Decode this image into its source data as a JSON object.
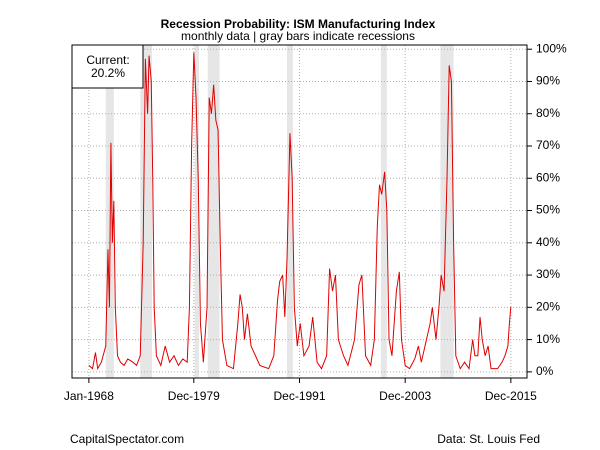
{
  "chart_data": {
    "type": "line",
    "title": "Recession Probability: ISM Manufacturing Index",
    "subtitle": "monthly data | gray bars indicate recessions",
    "legend_title": "Current:",
    "legend_value": "20.2%",
    "footer_left": "CapitalSpectator.com",
    "footer_right": "Data: St. Louis Fed",
    "recessions": [
      {
        "start": "1969-12",
        "end": "1970-11"
      },
      {
        "start": "1973-11",
        "end": "1975-03"
      },
      {
        "start": "1980-01",
        "end": "1980-07"
      },
      {
        "start": "1981-07",
        "end": "1982-11"
      },
      {
        "start": "1990-07",
        "end": "1991-03"
      },
      {
        "start": "2001-03",
        "end": "2001-11"
      },
      {
        "start": "2007-12",
        "end": "2009-06"
      }
    ],
    "recession_color": "#e6e6e6",
    "grid": true,
    "xlim": [
      "1966-02",
      "2017-10"
    ],
    "xticks": [
      {
        "value": "1968-01",
        "label": "Jan-1968"
      },
      {
        "value": "1979-12",
        "label": "Dec-1979"
      },
      {
        "value": "1991-12",
        "label": "Dec-1991"
      },
      {
        "value": "2003-12",
        "label": "Dec-2003"
      },
      {
        "value": "2015-12",
        "label": "Dec-2015"
      }
    ],
    "ylim": [
      -1.9,
      101.3
    ],
    "yticks": [
      {
        "value": 0,
        "label": "0%"
      },
      {
        "value": 10,
        "label": "10%"
      },
      {
        "value": 20,
        "label": "20%"
      },
      {
        "value": 30,
        "label": "30%"
      },
      {
        "value": 40,
        "label": "40%"
      },
      {
        "value": 50,
        "label": "50%"
      },
      {
        "value": 60,
        "label": "60%"
      },
      {
        "value": 70,
        "label": "70%"
      },
      {
        "value": 80,
        "label": "80%"
      },
      {
        "value": 90,
        "label": "90%"
      },
      {
        "value": 100,
        "label": "100%"
      }
    ],
    "x": [
      "1968-01",
      "1968-06",
      "1968-10",
      "1969-01",
      "1969-06",
      "1969-12",
      "1970-03",
      "1970-05",
      "1970-07",
      "1970-09",
      "1970-11",
      "1971-01",
      "1971-04",
      "1971-08",
      "1972-01",
      "1972-06",
      "1973-01",
      "1973-06",
      "1973-11",
      "1974-03",
      "1974-06",
      "1974-09",
      "1974-11",
      "1975-02",
      "1975-04",
      "1975-06",
      "1975-09",
      "1976-03",
      "1976-09",
      "1977-03",
      "1977-09",
      "1978-03",
      "1978-09",
      "1979-03",
      "1979-06",
      "1979-09",
      "1979-12",
      "1980-03",
      "1980-06",
      "1980-09",
      "1981-01",
      "1981-06",
      "1981-09",
      "1981-12",
      "1982-03",
      "1982-06",
      "1982-09",
      "1982-12",
      "1983-03",
      "1983-09",
      "1984-06",
      "1984-12",
      "1985-03",
      "1985-06",
      "1985-09",
      "1986-01",
      "1986-06",
      "1986-12",
      "1987-06",
      "1988-06",
      "1989-01",
      "1989-06",
      "1989-09",
      "1990-01",
      "1990-04",
      "1990-07",
      "1990-11",
      "1991-02",
      "1991-05",
      "1991-09",
      "1992-01",
      "1992-06",
      "1993-01",
      "1993-06",
      "1993-12",
      "1994-06",
      "1995-01",
      "1995-05",
      "1995-09",
      "1996-01",
      "1996-05",
      "1996-12",
      "1997-06",
      "1998-03",
      "1998-09",
      "1999-01",
      "1999-06",
      "2000-01",
      "2000-06",
      "2000-10",
      "2001-01",
      "2001-04",
      "2001-08",
      "2001-11",
      "2002-02",
      "2002-06",
      "2002-12",
      "2003-04",
      "2003-07",
      "2003-12",
      "2004-06",
      "2005-01",
      "2005-06",
      "2005-10",
      "2006-05",
      "2006-10",
      "2007-01",
      "2007-06",
      "2007-10",
      "2008-01",
      "2008-05",
      "2008-09",
      "2008-12",
      "2009-03",
      "2009-06",
      "2009-09",
      "2010-03",
      "2010-09",
      "2011-03",
      "2011-08",
      "2011-11",
      "2012-03",
      "2012-06",
      "2012-09",
      "2013-01",
      "2013-05",
      "2013-09",
      "2014-06",
      "2014-12",
      "2015-04",
      "2015-08",
      "2015-10",
      "2015-12"
    ],
    "series": [
      {
        "color": "#e00000",
        "values": [
          2,
          1,
          6,
          1,
          3,
          8,
          38,
          20,
          71,
          40,
          53,
          20,
          5,
          3,
          2,
          4,
          3,
          2,
          5,
          40,
          97,
          80,
          98,
          90,
          60,
          20,
          5,
          2,
          8,
          3,
          5,
          2,
          4,
          3,
          20,
          70,
          99,
          85,
          60,
          15,
          3,
          20,
          85,
          80,
          89,
          78,
          75,
          40,
          10,
          2,
          1,
          15,
          24,
          20,
          10,
          18,
          8,
          5,
          2,
          1,
          5,
          22,
          28,
          30,
          17,
          35,
          74,
          60,
          20,
          8,
          15,
          5,
          8,
          17,
          3,
          1,
          5,
          32,
          25,
          30,
          10,
          5,
          2,
          10,
          27,
          30,
          5,
          2,
          10,
          45,
          58,
          55,
          62,
          50,
          10,
          5,
          25,
          31,
          10,
          2,
          1,
          4,
          8,
          3,
          10,
          15,
          20,
          10,
          20,
          30,
          25,
          60,
          95,
          90,
          40,
          5,
          1,
          3,
          1,
          10,
          5,
          5,
          17,
          10,
          5,
          8,
          1,
          1,
          3,
          5,
          8,
          15,
          20.2
        ]
      }
    ]
  }
}
